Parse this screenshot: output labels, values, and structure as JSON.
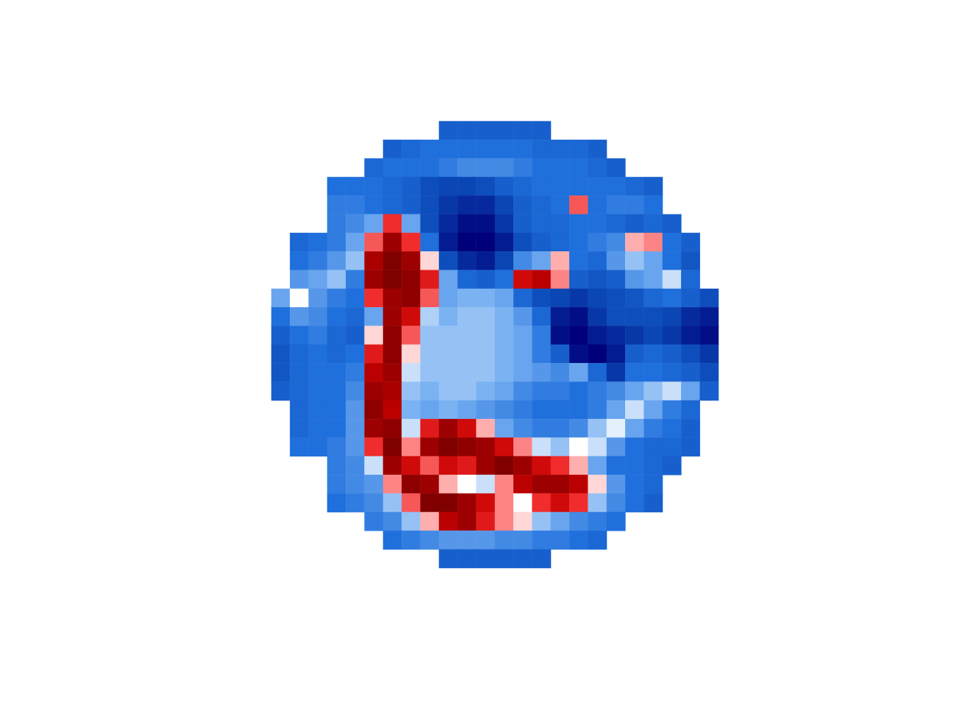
{
  "chart_data": {
    "type": "heatmap",
    "tick_labels": false,
    "zlim": [
      -1,
      1
    ],
    "cells": [
      [
        null,
        null,
        null,
        null,
        null,
        null,
        null,
        null,
        null,
        -0.6,
        -0.6,
        -0.6,
        -0.6,
        -0.6,
        -0.6,
        null,
        null,
        null,
        null,
        null,
        null,
        null,
        null,
        null
      ],
      [
        null,
        null,
        null,
        null,
        null,
        null,
        -0.6,
        -0.55,
        -0.5,
        -0.5,
        -0.5,
        -0.5,
        -0.5,
        -0.5,
        -0.55,
        -0.55,
        -0.55,
        -0.6,
        null,
        null,
        null,
        null,
        null,
        null
      ],
      [
        null,
        null,
        null,
        null,
        null,
        -0.55,
        -0.5,
        -0.5,
        -0.5,
        -0.45,
        -0.4,
        -0.4,
        -0.4,
        -0.45,
        -0.5,
        -0.5,
        -0.5,
        -0.55,
        -0.6,
        null,
        null,
        null,
        null,
        null
      ],
      [
        null,
        null,
        null,
        -0.5,
        -0.5,
        -0.5,
        -0.55,
        -0.6,
        -0.7,
        -0.75,
        -0.75,
        -0.7,
        -0.6,
        -0.55,
        -0.5,
        -0.5,
        -0.5,
        -0.5,
        -0.5,
        -0.55,
        -0.6,
        null,
        null,
        null
      ],
      [
        null,
        null,
        null,
        -0.45,
        -0.45,
        -0.5,
        -0.55,
        -0.6,
        -0.7,
        -0.8,
        -0.85,
        -0.85,
        -0.75,
        -0.6,
        -0.55,
        -0.5,
        0.4,
        -0.5,
        -0.45,
        -0.45,
        -0.5,
        null,
        null,
        null
      ],
      [
        null,
        null,
        null,
        -0.45,
        -0.4,
        -0.3,
        0.5,
        -0.3,
        -0.7,
        -0.85,
        -0.95,
        -0.95,
        -0.8,
        -0.6,
        -0.55,
        -0.55,
        -0.5,
        -0.5,
        -0.55,
        -0.6,
        -0.55,
        -0.6,
        null,
        null
      ],
      [
        null,
        -0.55,
        -0.5,
        -0.45,
        -0.3,
        0.4,
        0.9,
        0.5,
        -0.5,
        -0.9,
        -1,
        -1,
        -0.9,
        -0.7,
        -0.6,
        -0.55,
        -0.5,
        -0.45,
        -0.4,
        0.2,
        0.3,
        -0.5,
        -0.6,
        null
      ],
      [
        null,
        -0.5,
        -0.45,
        -0.35,
        -0.2,
        0.85,
        1,
        0.9,
        0.1,
        -0.7,
        -0.85,
        -0.9,
        -0.75,
        -0.4,
        -0.3,
        0.2,
        -0.5,
        -0.55,
        -0.35,
        -0.2,
        -0.3,
        -0.5,
        -0.65,
        null
      ],
      [
        null,
        -0.35,
        -0.3,
        -0.2,
        -0.45,
        0.9,
        1,
        0.95,
        0.6,
        -0.3,
        -0.55,
        -0.6,
        -0.5,
        0.7,
        0.8,
        0.3,
        -0.6,
        -0.65,
        -0.6,
        -0.35,
        -0.3,
        -0.1,
        -0.55,
        null
      ],
      [
        -0.3,
        0,
        -0.35,
        -0.45,
        -0.5,
        0.5,
        0.9,
        0.95,
        0.4,
        -0.3,
        -0.25,
        -0.25,
        -0.3,
        -0.55,
        -0.7,
        -0.75,
        -0.8,
        -0.75,
        -0.7,
        -0.65,
        -0.55,
        -0.5,
        -0.6,
        -0.7
      ],
      [
        -0.5,
        -0.35,
        -0.4,
        -0.5,
        -0.55,
        -0.3,
        0.9,
        0.7,
        -0.15,
        -0.25,
        -0.2,
        -0.2,
        -0.25,
        -0.35,
        -0.55,
        -0.9,
        -0.95,
        -0.8,
        -0.7,
        -0.7,
        -0.7,
        -0.75,
        -0.85,
        -0.9
      ],
      [
        -0.6,
        -0.5,
        -0.45,
        -0.55,
        -0.6,
        0.1,
        0.95,
        0.4,
        -0.2,
        -0.2,
        -0.2,
        -0.2,
        -0.25,
        -0.3,
        -0.45,
        -0.95,
        -1,
        -0.9,
        -0.85,
        -0.8,
        -0.75,
        -0.8,
        -0.9,
        -0.95
      ],
      [
        -0.65,
        -0.55,
        -0.5,
        -0.55,
        -0.5,
        0.6,
        0.95,
        0.1,
        -0.2,
        -0.2,
        -0.2,
        -0.2,
        -0.25,
        -0.3,
        -0.45,
        -0.6,
        -0.95,
        -1,
        -0.9,
        -0.6,
        -0.55,
        -0.6,
        -0.7,
        -0.8
      ],
      [
        -0.65,
        -0.55,
        -0.5,
        -0.5,
        -0.45,
        0.8,
        0.9,
        -0.1,
        -0.2,
        -0.2,
        -0.2,
        -0.2,
        -0.25,
        -0.3,
        -0.35,
        -0.4,
        -0.3,
        -0.55,
        -0.8,
        -0.5,
        -0.5,
        -0.55,
        -0.6,
        -0.7
      ],
      [
        -0.6,
        -0.55,
        -0.5,
        -0.5,
        -0.4,
        0.9,
        0.85,
        -0.2,
        -0.25,
        -0.2,
        -0.2,
        -0.25,
        -0.3,
        -0.4,
        -0.45,
        -0.45,
        -0.5,
        -0.45,
        -0.4,
        -0.3,
        -0.2,
        -0.1,
        -0.3,
        -0.6
      ],
      [
        null,
        -0.55,
        -0.5,
        -0.5,
        -0.35,
        0.95,
        0.8,
        -0.25,
        -0.3,
        -0.25,
        -0.3,
        -0.35,
        -0.4,
        -0.45,
        -0.5,
        -0.5,
        -0.5,
        -0.45,
        -0.3,
        -0.1,
        -0.3,
        -0.45,
        -0.55,
        null
      ],
      [
        null,
        -0.55,
        -0.5,
        -0.5,
        -0.35,
        0.9,
        0.95,
        -0.1,
        0.6,
        0.9,
        0.7,
        0.2,
        -0.3,
        -0.4,
        -0.45,
        -0.45,
        -0.4,
        -0.2,
        -0.05,
        -0.3,
        -0.45,
        -0.5,
        -0.6,
        null
      ],
      [
        null,
        -0.5,
        -0.5,
        -0.45,
        -0.35,
        0.5,
        1,
        0.3,
        0.9,
        1,
        0.95,
        0.9,
        0.7,
        0.3,
        -0.1,
        -0.2,
        0,
        -0.1,
        -0.35,
        -0.5,
        -0.55,
        -0.55,
        -0.6,
        null
      ],
      [
        null,
        null,
        null,
        -0.45,
        -0.4,
        -0.1,
        0.9,
        0.7,
        0.4,
        0.7,
        0.6,
        0.9,
        1,
        0.9,
        0.7,
        0.5,
        0.2,
        -0.3,
        -0.5,
        -0.5,
        -0.55,
        -0.6,
        null,
        null
      ],
      [
        null,
        null,
        null,
        -0.45,
        -0.4,
        -0.35,
        0.3,
        0.95,
        0.9,
        0.2,
        0,
        -0.1,
        0.3,
        0.8,
        0.9,
        0.9,
        0.8,
        0.1,
        -0.35,
        -0.5,
        -0.55,
        null,
        null,
        null
      ],
      [
        null,
        null,
        null,
        -0.5,
        -0.45,
        -0.4,
        -0.2,
        0.4,
        1,
        1,
        0.9,
        0.7,
        0.3,
        0,
        0.5,
        0.7,
        0.5,
        -0.2,
        -0.4,
        -0.5,
        -0.6,
        null,
        null,
        null
      ],
      [
        null,
        null,
        null,
        null,
        null,
        -0.45,
        -0.4,
        -0.2,
        0.2,
        0.8,
        0.9,
        0.6,
        0.3,
        0.1,
        -0.2,
        -0.3,
        -0.4,
        -0.45,
        -0.5,
        null,
        null,
        null,
        null,
        null
      ],
      [
        null,
        null,
        null,
        null,
        null,
        null,
        -0.5,
        -0.45,
        -0.4,
        -0.35,
        -0.35,
        -0.35,
        -0.4,
        -0.4,
        -0.45,
        -0.45,
        -0.5,
        -0.55,
        null,
        null,
        null,
        null,
        null,
        null
      ],
      [
        null,
        null,
        null,
        null,
        null,
        null,
        null,
        null,
        null,
        -0.6,
        -0.6,
        -0.6,
        -0.6,
        -0.6,
        -0.6,
        null,
        null,
        null,
        null,
        null,
        null,
        null,
        null,
        null
      ]
    ]
  }
}
